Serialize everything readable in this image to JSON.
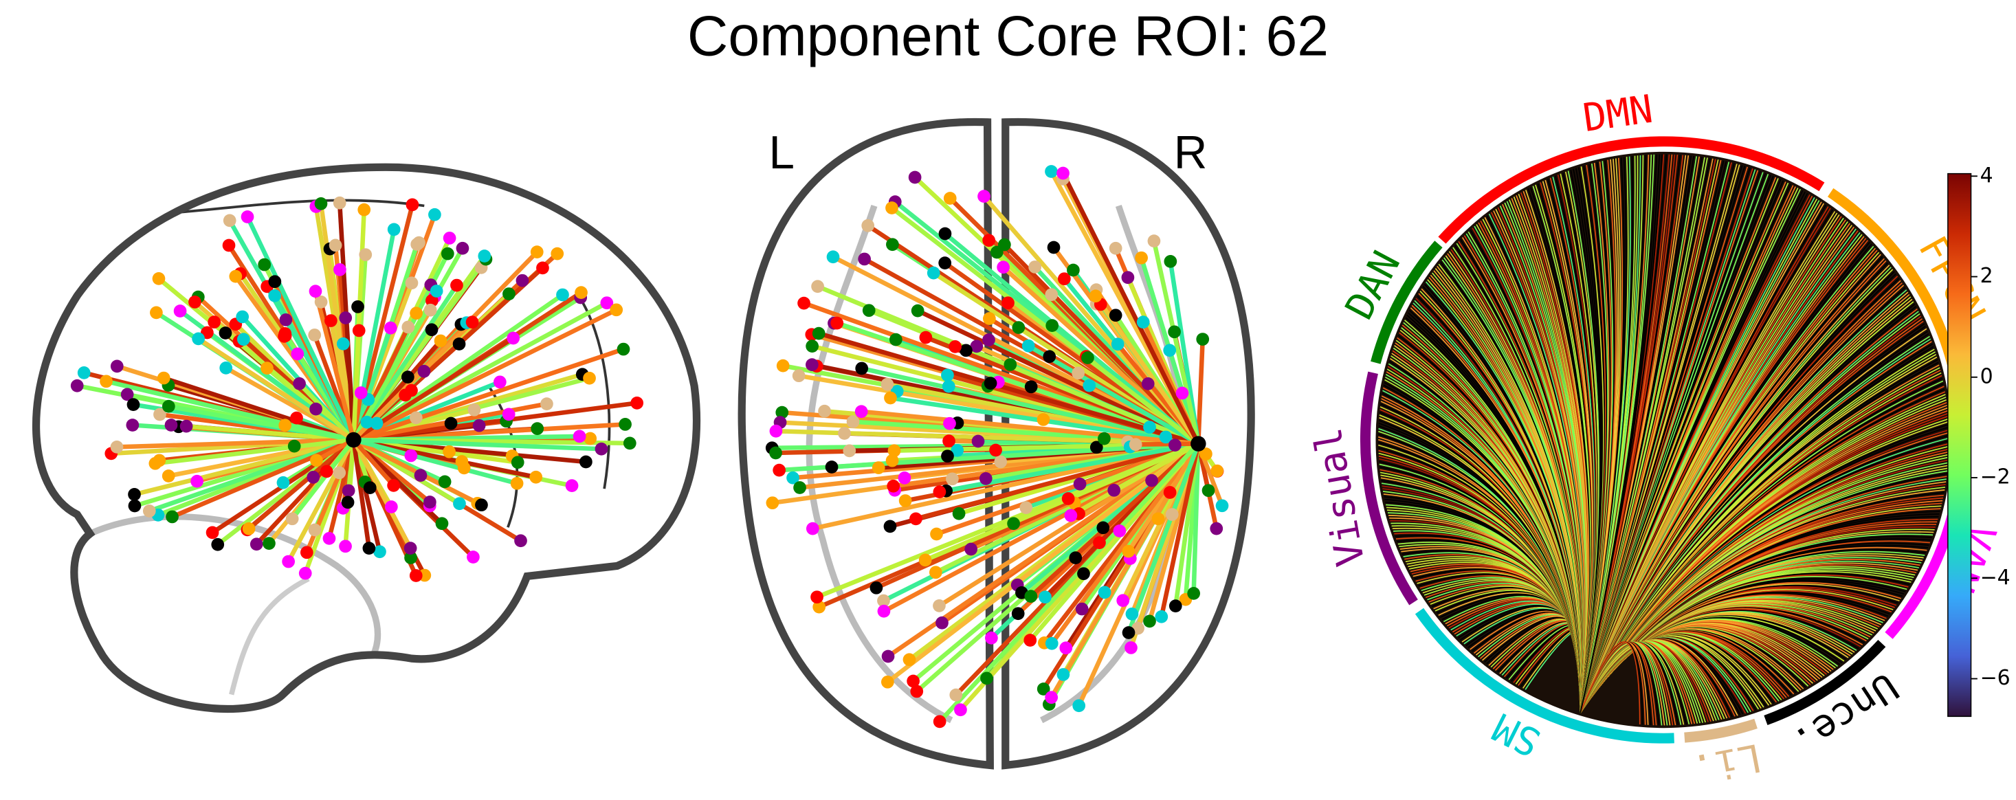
{
  "chart_data": {
    "type": "connectome",
    "title": "Component Core ROI: 62",
    "hemisphere_labels": [
      "L",
      "R"
    ],
    "networks": [
      {
        "name": "DMN",
        "color": "#ff0000"
      },
      {
        "name": "FPCN",
        "color": "#ffa500"
      },
      {
        "name": "VAN",
        "color": "#ff00ff"
      },
      {
        "name": "Unce.",
        "color": "#000000"
      },
      {
        "name": "Li.",
        "color": "#deb887"
      },
      {
        "name": "SM",
        "color": "#00ced1"
      },
      {
        "name": "Visual",
        "color": "#800080"
      },
      {
        "name": "DAN",
        "color": "#008000"
      }
    ],
    "colorbar": {
      "lim": [
        -6.75,
        4.05
      ],
      "ticks": [
        4,
        2,
        0,
        {
          "value": -2,
          "label": "−2"
        },
        {
          "value": -4,
          "label": "−4"
        },
        {
          "value": -6,
          "label": "−6"
        }
      ],
      "colormap": [
        "#30123b",
        "#4662d7",
        "#36aaf9",
        "#1ae4b6",
        "#72fe5e",
        "#c8ef34",
        "#faba39",
        "#f66b19",
        "#cb2a04",
        "#7a0403"
      ]
    }
  }
}
